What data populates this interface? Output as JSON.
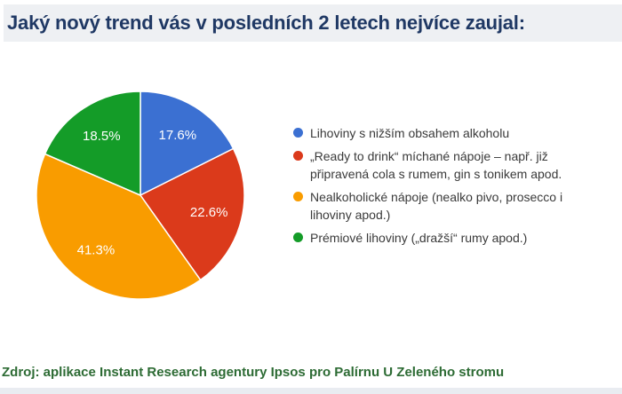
{
  "header": {
    "title": "Jaký nový trend vás v posledních 2 letech nejvíce zaujal:"
  },
  "chart_data": {
    "type": "pie",
    "labels": [
      "Lihoviny s nižším obsahem alkoholu",
      "„Ready to drink“ míchané nápoje – např. již připravená cola s rumem, gin s tonikem apod.",
      "Nealkoholické nápoje (nealko pivo, prosecco i lihoviny apod.)",
      "Prémiové lihoviny („dražší“ rumy apod.)"
    ],
    "values": [
      17.6,
      22.6,
      41.3,
      18.5
    ],
    "slice_labels": [
      "17.6%",
      "22.6%",
      "41.3%",
      "18.5%"
    ],
    "colors": [
      "#3b70d2",
      "#db3a1b",
      "#f99c00",
      "#149c28"
    ],
    "start_angle": 0,
    "direction": "clockwise",
    "legend_position": "right",
    "slice_label_color": "#ffffff"
  },
  "footer": {
    "source": "Zdroj: aplikace Instant Research agentury Ipsos pro Palírnu U Zeleného stromu"
  },
  "colors": {
    "title_text": "#1f3864",
    "header_bg": "#eef0f3",
    "legend_text": "#3a3a3a",
    "source_text": "#2d6b34",
    "bottom_strip": "#e9ecf1"
  }
}
